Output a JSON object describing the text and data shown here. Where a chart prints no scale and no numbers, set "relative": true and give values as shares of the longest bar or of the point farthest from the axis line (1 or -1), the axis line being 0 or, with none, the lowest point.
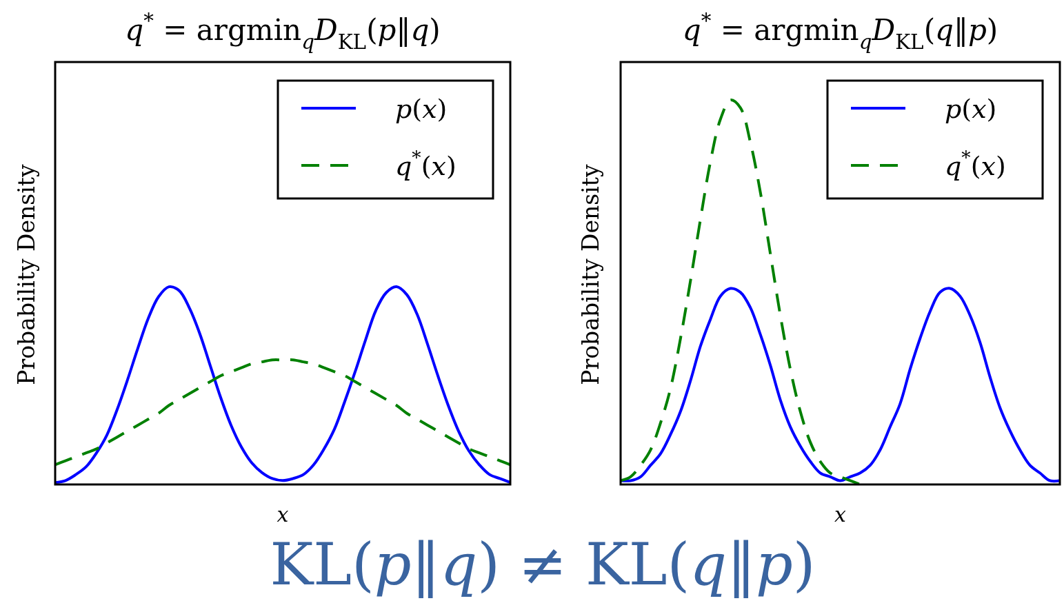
{
  "chart_data": [
    {
      "type": "line",
      "title": "q$^{*}$ = argmin$_{q}$D$_{KL}$(p‖q)",
      "xlabel": "x",
      "ylabel": "Probability Density",
      "relative": true,
      "legend": "top right",
      "categories": [
        null,
        null,
        null,
        null,
        null,
        null,
        null,
        null,
        null,
        null,
        null,
        null,
        null,
        null,
        null,
        null,
        null,
        null,
        null,
        null,
        null,
        null,
        null,
        null,
        null,
        null,
        null,
        null,
        null,
        null,
        null,
        null,
        null,
        null,
        null,
        null,
        null,
        null,
        null,
        null,
        null,
        null,
        null,
        null,
        null
      ],
      "series": [
        {
          "name": "p(x)",
          "color": "#0000ff",
          "line_style": "solid",
          "values": [
            0.01,
            0.02,
            0.05,
            0.09,
            0.16,
            0.25,
            0.38,
            0.53,
            0.69,
            0.84,
            0.95,
            1,
            0.98,
            0.89,
            0.76,
            0.6,
            0.44,
            0.3,
            0.19,
            0.11,
            0.06,
            0.03,
            0.02,
            0.03,
            0.05,
            0.1,
            0.18,
            0.28,
            0.42,
            0.57,
            0.73,
            0.88,
            0.97,
            1,
            0.96,
            0.86,
            0.71,
            0.55,
            0.4,
            0.27,
            0.17,
            0.1,
            0.05,
            0.03,
            0.01
          ]
        },
        {
          "name": "q$^{*}$(x)",
          "color": "#008000",
          "line_style": "dashed",
          "values": [
            0.1,
            0.12,
            0.14,
            0.16,
            0.18,
            0.21,
            0.24,
            0.27,
            0.3,
            0.33,
            0.36,
            0.4,
            0.43,
            0.46,
            0.49,
            0.52,
            0.55,
            0.57,
            0.59,
            0.61,
            0.62,
            0.63,
            0.63,
            0.63,
            0.62,
            0.61,
            0.59,
            0.57,
            0.55,
            0.52,
            0.49,
            0.46,
            0.43,
            0.4,
            0.36,
            0.33,
            0.3,
            0.27,
            0.24,
            0.21,
            0.18,
            0.16,
            0.14,
            0.12,
            0.1
          ]
        }
      ],
      "annotations": [
        "KL(p‖q) ≠ KL(q‖p)"
      ]
    },
    {
      "type": "line",
      "title": "q$^{*}$ = argmin$_{q}$D$_{KL}$(q‖p)",
      "xlabel": "x",
      "ylabel": "Probability Density",
      "relative": true,
      "legend": "top right",
      "categories": [
        null,
        null,
        null,
        null,
        null,
        null,
        null,
        null,
        null,
        null,
        null,
        null,
        null,
        null,
        null,
        null,
        null,
        null,
        null,
        null,
        null,
        null,
        null,
        null,
        null,
        null,
        null,
        null,
        null,
        null,
        null,
        null,
        null,
        null,
        null,
        null,
        null,
        null,
        null,
        null,
        null,
        null,
        null,
        null,
        null
      ],
      "series": [
        {
          "name": "p(x)",
          "color": "#0000ff",
          "line_style": "solid",
          "values": [
            0.01,
            0.01,
            0.02,
            0.05,
            0.08,
            0.13,
            0.19,
            0.27,
            0.36,
            0.43,
            0.49,
            0.51,
            0.5,
            0.46,
            0.39,
            0.31,
            0.22,
            0.15,
            0.1,
            0.06,
            0.03,
            0.02,
            0.01,
            0.02,
            0.03,
            0.05,
            0.09,
            0.15,
            0.21,
            0.3,
            0.38,
            0.45,
            0.5,
            0.51,
            0.49,
            0.44,
            0.37,
            0.28,
            0.2,
            0.14,
            0.09,
            0.05,
            0.03,
            0.01,
            0.01
          ]
        },
        {
          "name": "q$^{*}$(x)",
          "color": "#008000",
          "line_style": "dashed",
          "values": [
            0.01,
            0.02,
            0.05,
            0.09,
            0.16,
            0.25,
            0.38,
            0.53,
            0.69,
            0.84,
            0.95,
            1,
            0.98,
            0.89,
            0.76,
            0.6,
            0.44,
            0.3,
            0.19,
            0.11,
            0.06,
            0.03,
            0.02,
            0.01,
            0,
            null,
            null,
            null,
            null,
            null,
            null,
            null,
            null,
            null,
            null,
            null,
            null,
            null,
            null,
            null,
            null,
            null,
            null,
            null,
            null
          ]
        }
      ]
    }
  ]
}
